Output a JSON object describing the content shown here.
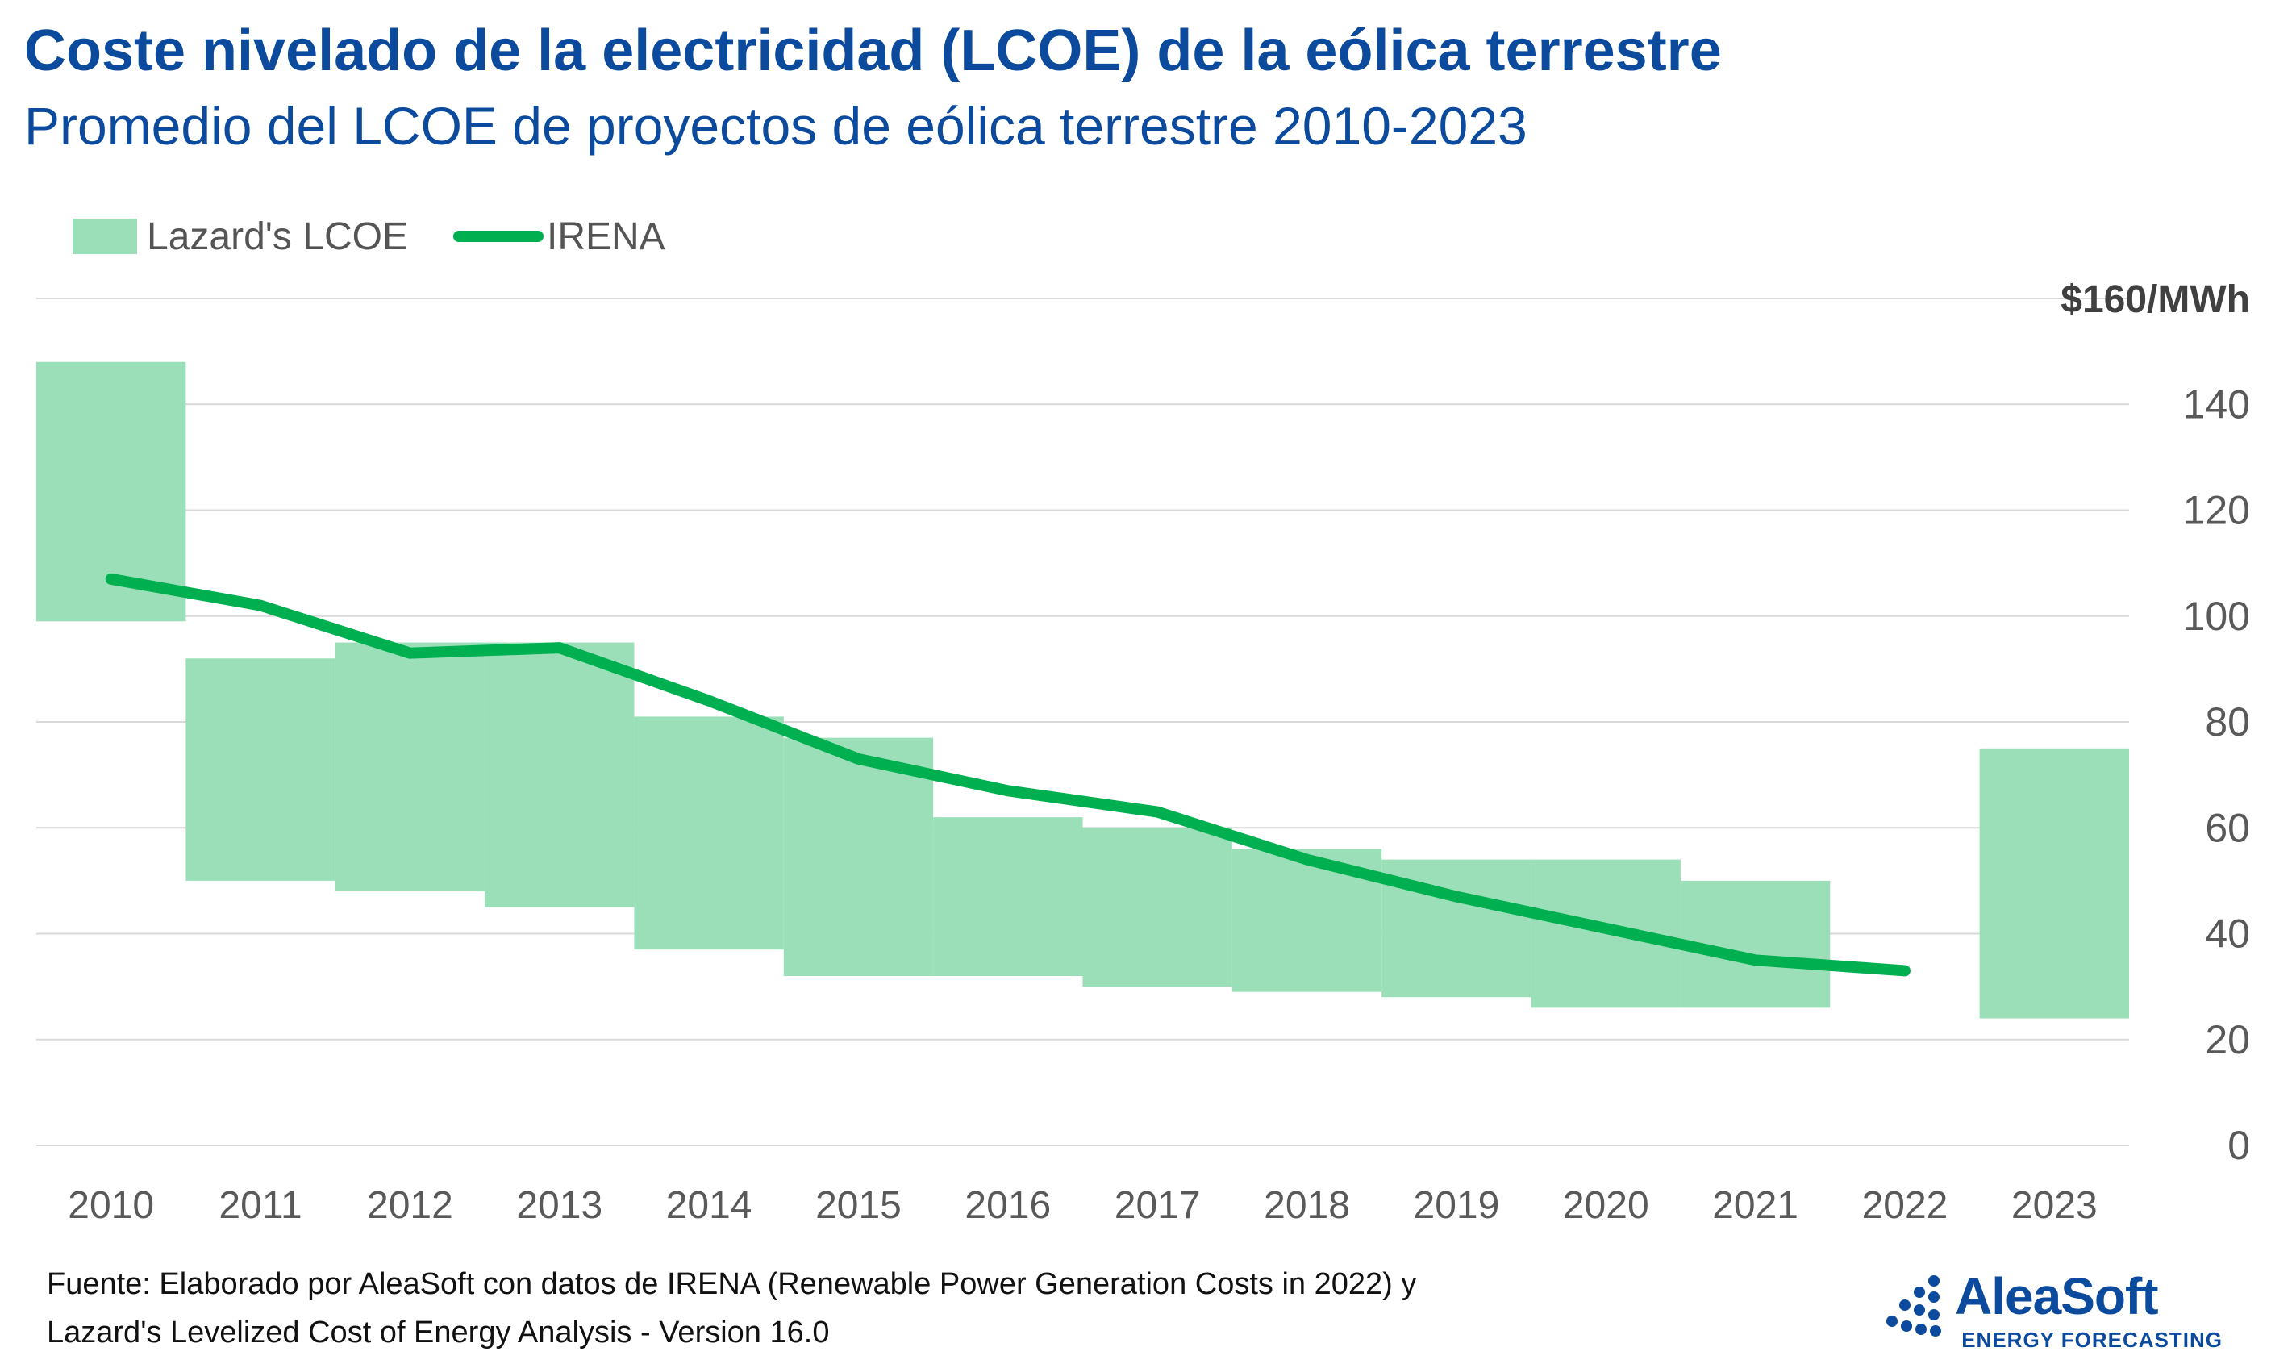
{
  "title": "Coste nivelado de la electricidad (LCOE) de la eólica terrestre",
  "subtitle": "Promedio del LCOE de proyectos de eólica terrestre 2010-2023",
  "legend": {
    "range_label": "Lazard's LCOE",
    "line_label": "IRENA"
  },
  "colors": {
    "title": "#0b4a9c",
    "range": "#9adfb7",
    "line": "#00b050",
    "grid": "#d9d9d9",
    "text": "#595959"
  },
  "chart_data": {
    "type": "bar",
    "categories": [
      "2010",
      "2011",
      "2012",
      "2013",
      "2014",
      "2015",
      "2016",
      "2017",
      "2018",
      "2019",
      "2020",
      "2021",
      "2022",
      "2023"
    ],
    "series": [
      {
        "name": "Lazard's LCOE",
        "type": "range",
        "low": [
          99,
          50,
          48,
          45,
          37,
          32,
          32,
          30,
          29,
          28,
          26,
          26,
          null,
          24
        ],
        "high": [
          148,
          92,
          95,
          95,
          81,
          77,
          62,
          60,
          56,
          54,
          54,
          50,
          null,
          75
        ]
      },
      {
        "name": "IRENA",
        "type": "line",
        "values": [
          107,
          102,
          93,
          94,
          84,
          73,
          67,
          63,
          54,
          47,
          41,
          35,
          33,
          null
        ]
      }
    ],
    "y_ticks": [
      "0",
      "20",
      "40",
      "60",
      "80",
      "100",
      "120",
      "140",
      "$160/MWh"
    ],
    "ylim": [
      0,
      160
    ],
    "y_axis_side": "right",
    "grid": true,
    "legend_position": "top-left"
  },
  "source": {
    "line1": "Fuente: Elaborado por AleaSoft con datos de IRENA (Renewable Power Generation Costs in 2022) y",
    "line2": "Lazard's Levelized Cost of Energy Analysis - Version 16.0"
  },
  "logo": {
    "name": "AleaSoft",
    "tagline": "ENERGY FORECASTING"
  }
}
